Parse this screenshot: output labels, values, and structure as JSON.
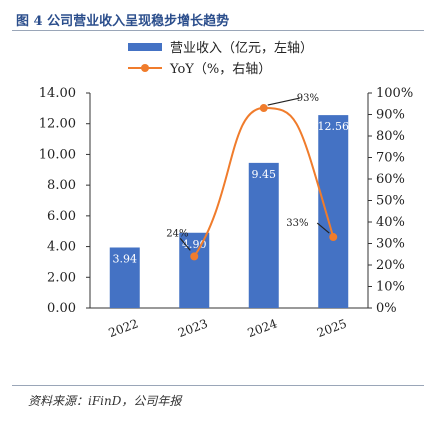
{
  "figure": {
    "title": "图 4 公司营业收入呈现稳步增长趋势",
    "source": "资料来源：iFinD，公司年报"
  },
  "colors": {
    "bar": "#4472c4",
    "line": "#f07c2c",
    "title": "#2b4e8c"
  },
  "chart_data": {
    "type": "bar",
    "categories": [
      "2022",
      "2023",
      "2024",
      "2025"
    ],
    "series": [
      {
        "name": "营业收入（亿元，左轴）",
        "type": "bar",
        "axis": "left",
        "values": [
          3.94,
          4.9,
          9.45,
          12.56
        ],
        "data_labels": [
          "3.94",
          "4.90",
          "9.45",
          "12.56"
        ]
      },
      {
        "name": "YoY（%，右轴）",
        "type": "line",
        "axis": "right",
        "values": [
          null,
          24,
          93,
          33
        ],
        "data_labels": [
          "",
          "24%",
          "93%",
          "33%"
        ]
      }
    ],
    "y_left": {
      "ylim": [
        0,
        14
      ],
      "ticks": [
        "0.00",
        "2.00",
        "4.00",
        "6.00",
        "8.00",
        "10.00",
        "12.00",
        "14.00"
      ]
    },
    "y_right": {
      "ylim": [
        0,
        100
      ],
      "ticks": [
        "0%",
        "10%",
        "20%",
        "30%",
        "40%",
        "50%",
        "60%",
        "70%",
        "80%",
        "90%",
        "100%"
      ]
    },
    "grid": false,
    "legend_position": "top"
  }
}
